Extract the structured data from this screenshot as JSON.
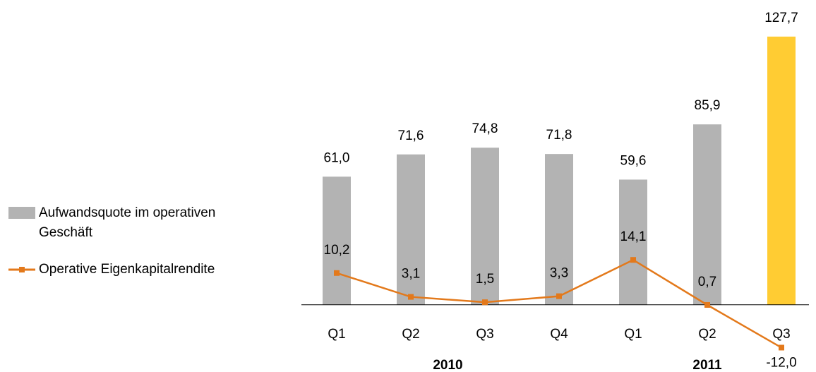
{
  "chart_data": {
    "type": "bar_line",
    "categories": [
      "Q1",
      "Q2",
      "Q3",
      "Q4",
      "Q1",
      "Q2",
      "Q3"
    ],
    "x_groups": [
      "2010",
      "2011"
    ],
    "series": [
      {
        "name": "Aufwandsquote im operativen Geschäft",
        "color": "#b3b3b3",
        "colors": [
          "#b3b3b3",
          "#b3b3b3",
          "#b3b3b3",
          "#b3b3b3",
          "#b3b3b3",
          "#b3b3b3",
          "#ffcc33"
        ],
        "values": [
          61.0,
          71.6,
          74.8,
          71.8,
          59.6,
          85.9,
          127.7
        ],
        "value_labels": [
          "61,0",
          "71,6",
          "74,8",
          "71,8",
          "59,6",
          "85,9",
          "127,7"
        ]
      },
      {
        "name": "Operative Eigenkapitalrendite",
        "color": "#e3791b",
        "axis": "y2",
        "values": [
          10.2,
          3.1,
          1.5,
          3.3,
          14.1,
          0.7,
          -12.0
        ],
        "value_labels": [
          "10,2",
          "3,1",
          "1,5",
          "3,3",
          "14,1",
          "0,7",
          "-12,0"
        ]
      }
    ],
    "ylim": [
      -30,
      130
    ],
    "y2lim": [
      -18,
      82
    ],
    "legend": "left"
  }
}
